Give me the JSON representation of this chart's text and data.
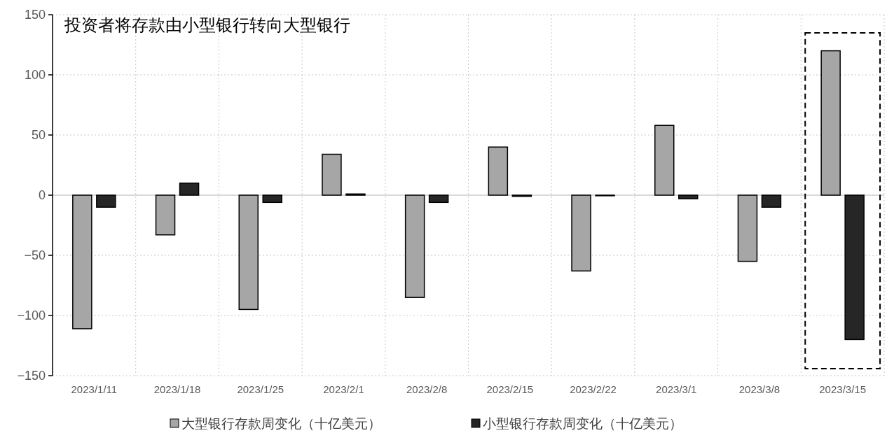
{
  "chart_data": {
    "type": "bar",
    "title": "投资者将存款由小型银行转向大型银行",
    "categories": [
      "2023/1/11",
      "2023/1/18",
      "2023/1/25",
      "2023/2/1",
      "2023/2/8",
      "2023/2/15",
      "2023/2/22",
      "2023/3/1",
      "2023/3/8",
      "2023/3/15"
    ],
    "series": [
      {
        "name": "大型银行存款周变化（十亿美元）",
        "color": "#a6a6a6",
        "values": [
          -111,
          -33,
          -95,
          34,
          -85,
          40,
          -63,
          58,
          -55,
          120
        ]
      },
      {
        "name": "小型银行存款周变化（十亿美元）",
        "color": "#262626",
        "values": [
          -10,
          10,
          -6,
          1,
          -6,
          -1,
          -0.5,
          -3,
          -10,
          -120
        ]
      }
    ],
    "ylim": [
      -150,
      150
    ],
    "yticks": [
      {
        "value": -150,
        "label": "−150"
      },
      {
        "value": -100,
        "label": "−100"
      },
      {
        "value": -50,
        "label": "−50"
      },
      0,
      50,
      100,
      150
    ],
    "grid": true,
    "legend": "bottom"
  }
}
